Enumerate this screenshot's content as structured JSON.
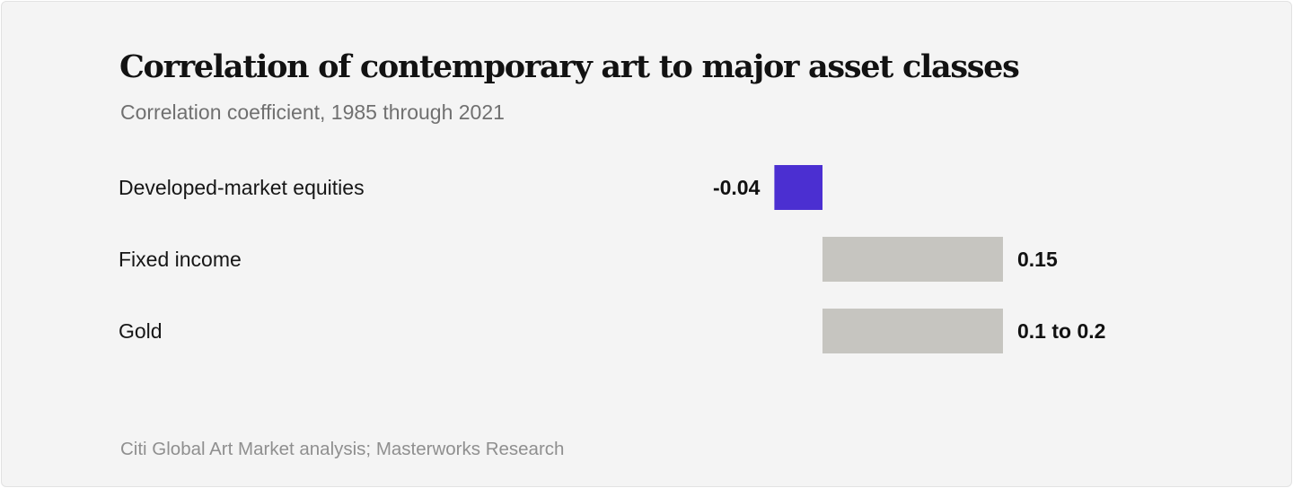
{
  "chart_data": {
    "type": "bar",
    "orientation": "horizontal",
    "title": "Correlation of contemporary art to major asset classes",
    "subtitle": "Correlation coefficient, 1985 through 2021",
    "categories": [
      "Developed-market equities",
      "Fixed income",
      "Gold"
    ],
    "values": [
      -0.04,
      0.15,
      0.15
    ],
    "value_labels": [
      "-0.04",
      "0.15",
      "0.1 to 0.2"
    ],
    "bar_colors": [
      "#4b2fd1",
      "#c6c5c0",
      "#c6c5c0"
    ],
    "xlim": [
      -0.05,
      0.2
    ],
    "grid": false,
    "legend": "none"
  },
  "source": "Citi Global Art Market analysis; Masterworks Research"
}
